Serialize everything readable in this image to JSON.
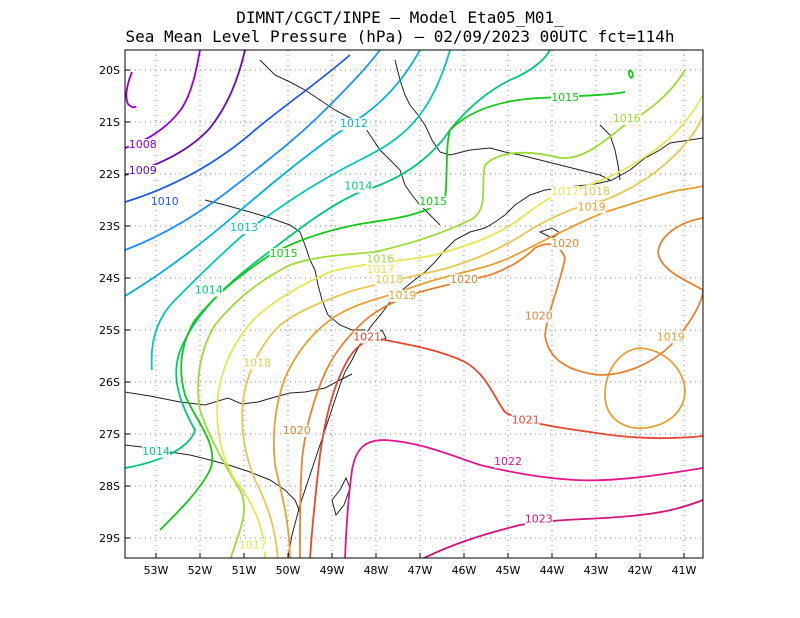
{
  "header": {
    "line1": "DIMNT/CGCT/INPE –  Model Eta05_M01_",
    "line2": "Sea Mean Level Pressure (hPa) – 02/09/2023 00UTC fct=114h"
  },
  "axes": {
    "lat_labels": [
      "20S",
      "21S",
      "22S",
      "23S",
      "24S",
      "25S",
      "26S",
      "27S",
      "28S",
      "29S"
    ],
    "lon_labels": [
      "53W",
      "52W",
      "51W",
      "50W",
      "49W",
      "48W",
      "47W",
      "46W",
      "45W",
      "44W",
      "43W",
      "42W",
      "41W"
    ]
  },
  "colors": {
    "1008": "#9400d3",
    "1009": "#6a0dad",
    "1010": "#1e5be6",
    "1011": "#1e90ff",
    "1012": "#00b4d8",
    "1013": "#00c8b4",
    "1014": "#00c878",
    "1015": "#14c814",
    "1016": "#9bdc32",
    "1017": "#e6e650",
    "1018": "#e6c850",
    "1019": "#e6a032",
    "1020": "#e68232",
    "1021": "#e64632",
    "1022": "#e6148c",
    "1023": "#d2147a"
  },
  "chart_data": {
    "type": "contour",
    "variable": "Sea Mean Level Pressure (hPa)",
    "contour_levels": [
      1008,
      1009,
      1010,
      1011,
      1012,
      1013,
      1014,
      1015,
      1016,
      1017,
      1018,
      1019,
      1020,
      1021,
      1022,
      1023
    ],
    "lat_range": [
      "29.4S",
      "19.6S"
    ],
    "lon_range": [
      "53.6W",
      "40.6W"
    ],
    "contour_labels": [
      {
        "text": "1008",
        "level": 1008,
        "lon": -53.3,
        "lat": -21.5
      },
      {
        "text": "1009",
        "level": 1009,
        "lon": -53.3,
        "lat": -22.0
      },
      {
        "text": "1010",
        "level": 1010,
        "lon": -52.8,
        "lat": -22.6
      },
      {
        "text": "1012",
        "level": 1012,
        "lon": -48.5,
        "lat": -21.1
      },
      {
        "text": "1014",
        "level": 1014,
        "lon": -48.4,
        "lat": -22.3
      },
      {
        "text": "1015",
        "level": 1015,
        "lon": -43.7,
        "lat": -20.6
      },
      {
        "text": "1015",
        "level": 1015,
        "lon": -46.7,
        "lat": -22.6
      },
      {
        "text": "1016",
        "level": 1016,
        "lon": -42.3,
        "lat": -21.0
      },
      {
        "text": "1013",
        "level": 1013,
        "lon": -51.0,
        "lat": -23.1
      },
      {
        "text": "1015",
        "level": 1015,
        "lon": -50.1,
        "lat": -23.6
      },
      {
        "text": "1016",
        "level": 1016,
        "lon": -47.9,
        "lat": -23.7
      },
      {
        "text": "1017",
        "level": 1017,
        "lon": -47.9,
        "lat": -23.9
      },
      {
        "text": "1018",
        "level": 1018,
        "lon": -47.7,
        "lat": -24.1
      },
      {
        "text": "1014",
        "level": 1014,
        "lon": -51.8,
        "lat": -24.3
      },
      {
        "text": "1017",
        "level": 1017,
        "lon": -43.7,
        "lat": -22.4
      },
      {
        "text": "1018",
        "level": 1018,
        "lon": -43.0,
        "lat": -22.4
      },
      {
        "text": "1019",
        "level": 1019,
        "lon": -43.1,
        "lat": -22.7
      },
      {
        "text": "1020",
        "level": 1020,
        "lon": -43.7,
        "lat": -23.4
      },
      {
        "text": "1020",
        "level": 1020,
        "lon": -46.0,
        "lat": -24.1
      },
      {
        "text": "1019",
        "level": 1019,
        "lon": -47.4,
        "lat": -24.4
      },
      {
        "text": "1020",
        "level": 1020,
        "lon": -44.3,
        "lat": -24.8
      },
      {
        "text": "1021",
        "level": 1021,
        "lon": -48.2,
        "lat": -25.2
      },
      {
        "text": "1019",
        "level": 1019,
        "lon": -41.3,
        "lat": -25.2
      },
      {
        "text": "1018",
        "level": 1018,
        "lon": -50.7,
        "lat": -25.7
      },
      {
        "text": "1021",
        "level": 1021,
        "lon": -44.6,
        "lat": -26.8
      },
      {
        "text": "1020",
        "level": 1020,
        "lon": -49.8,
        "lat": -27.0
      },
      {
        "text": "1014",
        "level": 1014,
        "lon": -53.0,
        "lat": -27.4
      },
      {
        "text": "1022",
        "level": 1022,
        "lon": -45.0,
        "lat": -27.6
      },
      {
        "text": "1023",
        "level": 1023,
        "lon": -44.3,
        "lat": -28.7
      },
      {
        "text": "1017",
        "level": 1017,
        "lon": -50.8,
        "lat": -29.2
      }
    ]
  }
}
